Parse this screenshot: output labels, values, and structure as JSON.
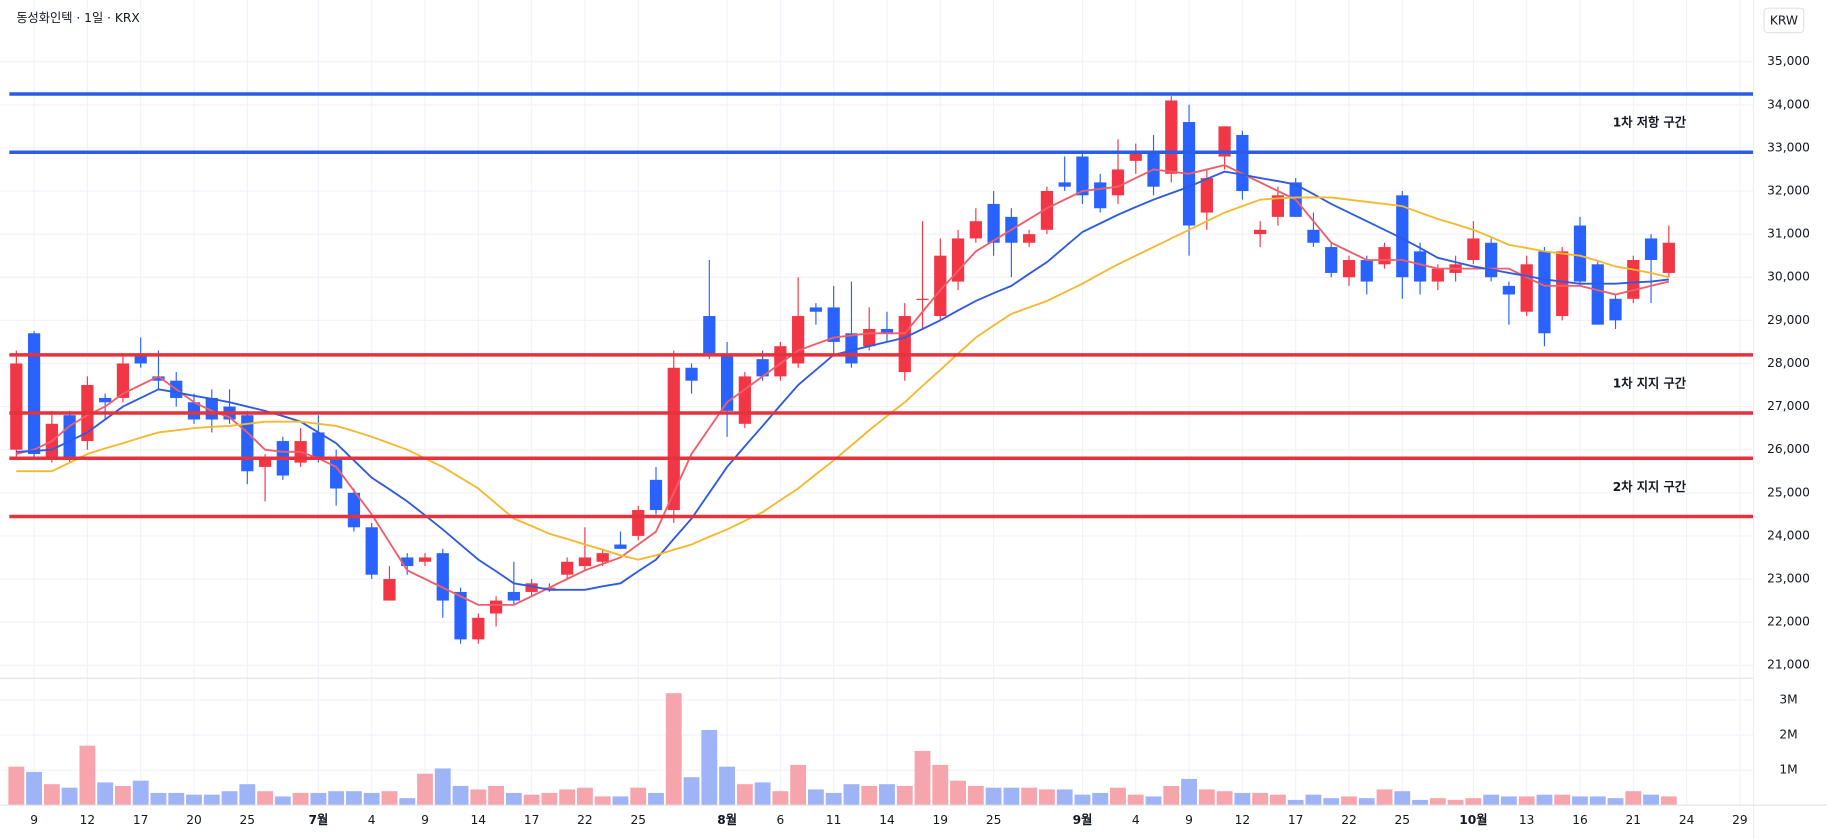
{
  "chart_data": [
    {
      "type": "candlestick",
      "title": "동성화인텍 · 1일 · KRX",
      "currency": "KRW",
      "categories": [
        null,
        "9",
        null,
        null,
        "12",
        null,
        null,
        "17",
        null,
        null,
        "20",
        null,
        null,
        "25",
        null,
        null,
        null,
        "7월",
        null,
        null,
        "4",
        null,
        null,
        "9",
        null,
        null,
        "14",
        null,
        null,
        "17",
        null,
        null,
        "22",
        null,
        null,
        "25",
        null,
        null,
        null,
        null,
        "8월",
        null,
        null,
        "6",
        null,
        null,
        "11",
        null,
        null,
        "14",
        null,
        null,
        "19",
        null,
        null,
        "25",
        null,
        null,
        null,
        null,
        "9월",
        null,
        null,
        "4",
        null,
        null,
        "9",
        null,
        null,
        "12",
        null,
        null,
        "17",
        null,
        null,
        "22",
        null,
        null,
        "25",
        null,
        null,
        null,
        "10월",
        null,
        null,
        "13",
        null,
        null,
        "16",
        null,
        null,
        "21",
        null,
        null,
        "24",
        null,
        null,
        "29"
      ],
      "open": [
        26000,
        28700,
        25800,
        26800,
        26200,
        27200,
        27200,
        28200,
        27700,
        27600,
        27100,
        27200,
        27000,
        26800,
        25600,
        26200,
        25700,
        26400,
        25800,
        25000,
        24200,
        22500,
        23500,
        23400,
        23600,
        22700,
        21600,
        22200,
        22700,
        22700,
        22800,
        23100,
        23300,
        23400,
        23800,
        24000,
        25300,
        24600,
        27900,
        29100,
        28200,
        26600,
        28100,
        27700,
        28000,
        29300,
        29300,
        28700,
        28400,
        28800,
        27800,
        29500,
        29100,
        29900,
        30900,
        31700,
        31400,
        30800,
        31100,
        32200,
        32800,
        32200,
        31900,
        32700,
        32900,
        32400,
        33600,
        31500,
        32800,
        33300,
        31000,
        31400,
        32200,
        31100,
        30700,
        30000,
        30400,
        30300,
        31900,
        30600,
        29900,
        30100,
        30400,
        30800,
        29800,
        29200,
        30600,
        29100,
        31200,
        30300,
        29500,
        29500,
        30900,
        30100,
        null,
        null,
        null,
        null
      ],
      "high": [
        28300,
        28750,
        26900,
        26900,
        27700,
        27300,
        28200,
        28600,
        28300,
        27800,
        27300,
        27400,
        27400,
        26900,
        25900,
        26300,
        26500,
        26800,
        26000,
        25100,
        24300,
        23300,
        23600,
        23600,
        23700,
        22800,
        22200,
        22600,
        23400,
        23000,
        22900,
        23500,
        24200,
        23700,
        24100,
        24700,
        25600,
        28300,
        28000,
        30400,
        28500,
        27800,
        28300,
        28500,
        30000,
        29400,
        29800,
        29900,
        29300,
        29200,
        29400,
        31300,
        30900,
        31100,
        31600,
        32000,
        31600,
        31100,
        32100,
        32800,
        32900,
        32400,
        33200,
        33100,
        33300,
        34200,
        34000,
        32500,
        33500,
        33400,
        31300,
        32100,
        32300,
        31500,
        30800,
        30500,
        30500,
        30800,
        32000,
        30800,
        30300,
        30500,
        31300,
        30900,
        29900,
        30500,
        30700,
        30700,
        31400,
        30400,
        29600,
        30500,
        31000,
        31200,
        null,
        null,
        null,
        null
      ],
      "low": [
        25800,
        25800,
        25700,
        25700,
        26000,
        26700,
        27100,
        27900,
        27400,
        27000,
        26600,
        26400,
        26600,
        25200,
        24800,
        25300,
        25600,
        25700,
        24700,
        24100,
        23000,
        22500,
        23100,
        23300,
        22100,
        21500,
        21500,
        21900,
        22400,
        22600,
        22700,
        23000,
        23200,
        23300,
        23700,
        23900,
        24500,
        24300,
        27300,
        28100,
        26300,
        26500,
        27600,
        27600,
        27900,
        28900,
        28200,
        27900,
        28300,
        28500,
        27600,
        28800,
        29000,
        29700,
        30800,
        30500,
        30000,
        30700,
        31000,
        32000,
        31700,
        31500,
        31700,
        32400,
        31900,
        32200,
        30500,
        31100,
        32500,
        31800,
        30700,
        31200,
        31400,
        30700,
        30000,
        29800,
        29600,
        30200,
        29500,
        29600,
        29700,
        29900,
        30300,
        29900,
        28900,
        29100,
        28400,
        29000,
        29800,
        28900,
        28800,
        29400,
        29400,
        30000,
        null,
        null,
        null,
        null
      ],
      "close": [
        28000,
        25900,
        26600,
        25800,
        27500,
        27100,
        28000,
        28000,
        27600,
        27200,
        26700,
        26700,
        26700,
        25500,
        25800,
        25400,
        26200,
        25800,
        25100,
        24200,
        23100,
        23000,
        23300,
        23500,
        22500,
        21600,
        22100,
        22500,
        22500,
        22900,
        22800,
        23400,
        23500,
        23600,
        23700,
        24600,
        24600,
        27900,
        27600,
        28200,
        26900,
        27700,
        27700,
        28400,
        29100,
        29200,
        28500,
        28000,
        28800,
        28700,
        29100,
        29500,
        30500,
        30900,
        31300,
        30800,
        30800,
        31000,
        32000,
        32100,
        31900,
        31600,
        32500,
        32900,
        32100,
        34100,
        31200,
        32300,
        33500,
        32000,
        31100,
        31900,
        31400,
        30800,
        30100,
        30400,
        29900,
        30700,
        30000,
        29900,
        30200,
        30300,
        30900,
        30000,
        29600,
        30300,
        28700,
        30600,
        29900,
        28900,
        29000,
        30400,
        30400,
        30800,
        null,
        null,
        null,
        null
      ],
      "up_color": "#f23645",
      "down_color": "#2962ff",
      "series": [
        {
          "color": "#ef5f6b",
          "values": [
            25900,
            26000,
            26200,
            26550,
            26800,
            27000,
            27300,
            27500,
            27700,
            27400,
            27100,
            26900,
            26750,
            26400,
            26000,
            25950,
            25950,
            25800,
            25600,
            25050,
            24500,
            23850,
            23200,
            23000,
            22800,
            22600,
            22400,
            22400,
            22400,
            22600,
            22800,
            23000,
            23200,
            23350,
            23500,
            23800,
            24100,
            25000,
            25900,
            26500,
            27100,
            27400,
            27700,
            28000,
            28300,
            28450,
            28600,
            28650,
            28700,
            28700,
            28700,
            29200,
            29700,
            30150,
            30600,
            30850,
            31100,
            31350,
            31600,
            31800,
            32000,
            32050,
            32100,
            32300,
            32500,
            32450,
            32400,
            32500,
            32600,
            32400,
            32200,
            32000,
            31800,
            31300,
            30800,
            30600,
            30400,
            30400,
            30400,
            30300,
            30200,
            30200,
            30200,
            30200,
            30200,
            30000,
            29800,
            29800,
            29800,
            29700,
            29600,
            29700,
            29800,
            29900,
            null,
            null,
            null,
            null
          ]
        },
        {
          "color": "#2e5be0",
          "values": [
            25950,
            25970,
            26000,
            26200,
            26400,
            26700,
            27000,
            27200,
            27400,
            27330,
            27250,
            27180,
            27100,
            27000,
            26900,
            26780,
            26650,
            26400,
            26150,
            25750,
            25350,
            25080,
            24800,
            24480,
            24150,
            23800,
            23450,
            23180,
            22900,
            22830,
            22750,
            22750,
            22750,
            22830,
            22900,
            23180,
            23450,
            23930,
            24400,
            25000,
            25600,
            26080,
            26550,
            27030,
            27500,
            27850,
            28200,
            28300,
            28400,
            28500,
            28600,
            28800,
            29000,
            29230,
            29450,
            29630,
            29800,
            30080,
            30350,
            30700,
            31050,
            31250,
            31450,
            31630,
            31800,
            31950,
            32100,
            32280,
            32450,
            32380,
            32300,
            32230,
            32150,
            31930,
            31700,
            31500,
            31300,
            31100,
            30900,
            30680,
            30450,
            30350,
            30250,
            30180,
            30100,
            30030,
            29950,
            29900,
            29850,
            29850,
            29850,
            29880,
            29900,
            29950,
            null,
            null,
            null,
            null
          ]
        },
        {
          "color": "#f5b82e",
          "values": [
            25500,
            25500,
            25500,
            25700,
            25900,
            26030,
            26150,
            26280,
            26400,
            26450,
            26500,
            26530,
            26550,
            26600,
            26650,
            26650,
            26650,
            26600,
            26550,
            26430,
            26300,
            26150,
            26000,
            25800,
            25600,
            25350,
            25100,
            24750,
            24400,
            24230,
            24050,
            23930,
            23800,
            23680,
            23550,
            23450,
            23550,
            23680,
            23800,
            23980,
            24150,
            24350,
            24550,
            24830,
            25100,
            25430,
            25750,
            26100,
            26450,
            26780,
            27100,
            27480,
            27850,
            28230,
            28600,
            28880,
            29150,
            29300,
            29450,
            29650,
            29850,
            30080,
            30300,
            30500,
            30700,
            30900,
            31100,
            31300,
            31500,
            31650,
            31800,
            31830,
            31850,
            31850,
            31850,
            31800,
            31750,
            31700,
            31650,
            31500,
            31350,
            31230,
            31100,
            30930,
            30750,
            30680,
            30600,
            30550,
            30500,
            30380,
            30250,
            30180,
            30100,
            30000,
            null,
            null,
            null,
            null
          ]
        }
      ],
      "ylim": [
        20700,
        36430
      ],
      "yticks": [
        {
          "value": 21000,
          "label": "21,000"
        },
        {
          "value": 22000,
          "label": "22,000"
        },
        {
          "value": 23000,
          "label": "23,000"
        },
        {
          "value": 24000,
          "label": "24,000"
        },
        {
          "value": 25000,
          "label": "25,000"
        },
        {
          "value": 26000,
          "label": "26,000"
        },
        {
          "value": 27000,
          "label": "27,000"
        },
        {
          "value": 28000,
          "label": "28,000"
        },
        {
          "value": 29000,
          "label": "29,000"
        },
        {
          "value": 30000,
          "label": "30,000"
        },
        {
          "value": 31000,
          "label": "31,000"
        },
        {
          "value": 32000,
          "label": "32,000"
        },
        {
          "value": 33000,
          "label": "33,000"
        },
        {
          "value": 34000,
          "label": "34,000"
        },
        {
          "value": 35000,
          "label": "35,000"
        }
      ],
      "grid": true,
      "zones": [
        {
          "label": "1차 저항 구간",
          "color": "#2b5ce6",
          "range": [
            32900,
            34250
          ]
        },
        {
          "label": "1차 지지 구간",
          "color": "#e5323d",
          "range": [
            26850,
            28200
          ]
        },
        {
          "label": "2차 지지 구간",
          "color": "#e5323d",
          "range": [
            24450,
            25800
          ]
        }
      ]
    },
    {
      "type": "bar",
      "values": [
        1100000,
        950000,
        600000,
        500000,
        1700000,
        650000,
        550000,
        700000,
        350000,
        350000,
        300000,
        300000,
        400000,
        600000,
        400000,
        250000,
        350000,
        350000,
        400000,
        400000,
        350000,
        400000,
        200000,
        900000,
        1050000,
        550000,
        450000,
        550000,
        350000,
        300000,
        350000,
        450000,
        500000,
        250000,
        250000,
        500000,
        350000,
        3200000,
        800000,
        2150000,
        1100000,
        600000,
        650000,
        400000,
        1150000,
        450000,
        350000,
        600000,
        550000,
        600000,
        550000,
        1550000,
        1150000,
        700000,
        550000,
        500000,
        500000,
        500000,
        450000,
        450000,
        300000,
        350000,
        500000,
        300000,
        250000,
        550000,
        750000,
        450000,
        400000,
        350000,
        350000,
        300000,
        150000,
        300000,
        200000,
        250000,
        200000,
        450000,
        400000,
        150000,
        200000,
        150000,
        200000,
        300000,
        250000,
        250000,
        300000,
        300000,
        250000,
        250000,
        200000,
        400000,
        300000,
        250000,
        null,
        null,
        null,
        null
      ],
      "up_color": "#f7a5ad",
      "down_color": "#9fb4f7",
      "ylim": [
        0,
        3630000
      ],
      "yticks": [
        {
          "value": 1000000,
          "label": "1M"
        },
        {
          "value": 2000000,
          "label": "2M"
        },
        {
          "value": 3000000,
          "label": "3M"
        }
      ]
    }
  ]
}
